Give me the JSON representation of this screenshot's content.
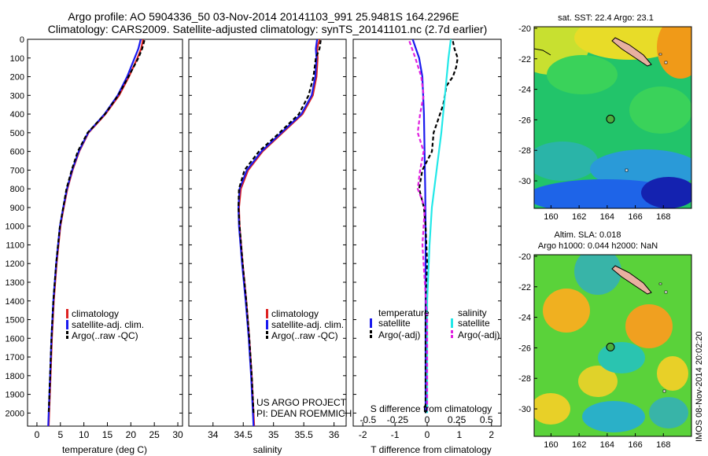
{
  "title_line1": "Argo profile: AO 5904336_50 03-Nov-2014 20141103_991 25.9481S 164.2296E",
  "title_line2": "Climatology: CARS2009. Satellite-adjusted climatology: synTS_20141101.nc (2.7d earlier)",
  "credit_line1": "US ARGO PROJECT",
  "credit_line2": "PI: DEAN ROEMMICH",
  "footer_stamp": "IMOS 08-Nov-2014 20:02:20",
  "colors": {
    "climatology": "#dd2222",
    "satellite": "#1a1aee",
    "argo": "#000000",
    "salinity_satellite": "#22e8e8",
    "salinity_argo": "#e020e0"
  },
  "chart_data": [
    {
      "type": "line",
      "xlabel": "temperature (deg C)",
      "xlim": [
        -2,
        31
      ],
      "ylim": [
        2070,
        0
      ],
      "xticks": [
        "0",
        "5",
        "10",
        "15",
        "20",
        "25",
        "30"
      ],
      "yticks": [
        "0",
        "100",
        "200",
        "300",
        "400",
        "500",
        "600",
        "700",
        "800",
        "900",
        "1000",
        "1100",
        "1200",
        "1300",
        "1400",
        "1500",
        "1600",
        "1700",
        "1800",
        "1900",
        "2000"
      ],
      "legend": [
        "climatology",
        "satellite-adj. clim.",
        "Argo(..raw -QC)"
      ],
      "series": [
        {
          "name": "climatology",
          "depth": [
            0,
            50,
            100,
            200,
            300,
            400,
            500,
            600,
            700,
            800,
            900,
            1000,
            1200,
            1400,
            1600,
            1800,
            2000,
            2070
          ],
          "values": [
            22.6,
            22.2,
            21.4,
            19.6,
            17.5,
            14.6,
            11.0,
            9.0,
            7.6,
            6.5,
            5.7,
            5.0,
            4.2,
            3.6,
            3.2,
            2.9,
            2.6,
            2.5
          ]
        },
        {
          "name": "satellite-adj. clim.",
          "depth": [
            0,
            50,
            100,
            200,
            300,
            400,
            500,
            600,
            700,
            800,
            900,
            1000,
            1200,
            1400,
            1600,
            1800,
            2000,
            2070
          ],
          "values": [
            22.1,
            21.6,
            20.8,
            19.2,
            17.2,
            14.4,
            10.9,
            8.9,
            7.5,
            6.4,
            5.6,
            4.9,
            4.1,
            3.5,
            3.1,
            2.8,
            2.5,
            2.4
          ]
        },
        {
          "name": "Argo(..raw -QC)",
          "depth": [
            5,
            50,
            100,
            200,
            300,
            400,
            500,
            600,
            700,
            800,
            900,
            1000,
            1200,
            1400,
            1600,
            1800,
            2000
          ],
          "values": [
            22.9,
            22.4,
            21.6,
            19.5,
            17.3,
            14.5,
            10.8,
            8.7,
            7.4,
            6.3,
            5.6,
            4.9,
            4.1,
            3.5,
            3.1,
            2.8,
            2.5
          ]
        }
      ]
    },
    {
      "type": "line",
      "xlabel": "salinity",
      "xlim": [
        33.6,
        36.2
      ],
      "ylim": [
        2070,
        0
      ],
      "xticks": [
        "34",
        "34.5",
        "35",
        "35.5",
        "36"
      ],
      "legend": [
        "climatology",
        "satellite-adj. clim.",
        "Argo(..raw -QC)"
      ],
      "series": [
        {
          "name": "climatology",
          "depth": [
            0,
            50,
            100,
            200,
            300,
            400,
            500,
            600,
            700,
            800,
            900,
            1000,
            1200,
            1400,
            1600,
            1800,
            2000,
            2070
          ],
          "values": [
            35.76,
            35.72,
            35.73,
            35.71,
            35.65,
            35.48,
            35.15,
            34.82,
            34.58,
            34.46,
            34.43,
            34.44,
            34.49,
            34.55,
            34.6,
            34.64,
            34.67,
            34.68
          ]
        },
        {
          "name": "satellite-adj. clim.",
          "depth": [
            0,
            50,
            100,
            200,
            300,
            400,
            500,
            600,
            700,
            800,
            900,
            1000,
            1200,
            1400,
            1600,
            1800,
            2000,
            2070
          ],
          "values": [
            35.72,
            35.7,
            35.71,
            35.69,
            35.63,
            35.46,
            35.13,
            34.8,
            34.56,
            34.44,
            34.42,
            34.43,
            34.48,
            34.54,
            34.59,
            34.63,
            34.66,
            34.67
          ]
        },
        {
          "name": "Argo(..raw -QC)",
          "depth": [
            5,
            50,
            100,
            200,
            300,
            400,
            500,
            600,
            700,
            800,
            900,
            1000,
            1200,
            1400,
            1600,
            1800,
            2000
          ],
          "values": [
            35.78,
            35.76,
            35.7,
            35.66,
            35.58,
            35.42,
            35.1,
            34.76,
            34.52,
            34.43,
            34.42,
            34.44,
            34.49,
            34.55,
            34.6,
            34.64,
            34.67
          ]
        }
      ]
    },
    {
      "type": "line",
      "xlabel": "T difference from climatology",
      "x2label": "S difference from climatology",
      "xlim": [
        -2.3,
        2.3
      ],
      "ylim": [
        2070,
        0
      ],
      "xticks": [
        "-2",
        "-1",
        "0",
        "1",
        "2"
      ],
      "x2ticks": [
        "-0.5",
        "-0.25",
        "0",
        "0.25",
        "0.5"
      ],
      "legend_temperature_title": "temperature",
      "legend_salinity_title": "salinity",
      "legend": [
        "satellite",
        "Argo(-adj)",
        "satellite",
        "Argo(-adj)"
      ],
      "series": [
        {
          "name": "temperature satellite",
          "depth": [
            0,
            50,
            100,
            200,
            400,
            600,
            800,
            1000,
            1500,
            2000
          ],
          "values": [
            -0.45,
            -0.35,
            -0.25,
            -0.15,
            -0.1,
            -0.08,
            -0.06,
            -0.05,
            -0.05,
            -0.05
          ]
        },
        {
          "name": "temperature Argo(-adj)",
          "depth": [
            10,
            50,
            100,
            150,
            200,
            250,
            300,
            350,
            400,
            450,
            500,
            600,
            700,
            800,
            900,
            1000,
            1200,
            1500,
            1800,
            2000
          ],
          "values": [
            0.8,
            0.85,
            0.95,
            0.9,
            0.8,
            0.6,
            0.55,
            0.5,
            0.4,
            0.3,
            0.2,
            0.15,
            -0.15,
            -0.25,
            -0.1,
            -0.05,
            0.0,
            -0.05,
            -0.05,
            -0.05
          ]
        },
        {
          "name": "salinity satellite",
          "depth": [
            0,
            100,
            300,
            500,
            700,
            900,
            1100,
            1400,
            1700,
            2000
          ],
          "values": [
            0.2,
            0.18,
            0.15,
            0.12,
            0.08,
            0.04,
            0.02,
            0.0,
            0.0,
            0.0
          ]
        },
        {
          "name": "salinity Argo(-adj)",
          "depth": [
            10,
            100,
            200,
            300,
            400,
            500,
            600,
            700,
            800,
            900,
            1100,
            1500,
            2000
          ],
          "values": [
            -0.15,
            -0.1,
            -0.05,
            -0.03,
            -0.06,
            -0.08,
            -0.03,
            -0.06,
            -0.08,
            -0.02,
            -0.04,
            0.0,
            0.0
          ]
        }
      ]
    },
    {
      "type": "heatmap",
      "title": "sat. SST: 22.4 Argo: 23.1",
      "xticks": [
        "160",
        "162",
        "164",
        "166",
        "168"
      ],
      "yticks": [
        "-20",
        "-22",
        "-24",
        "-26",
        "-28",
        "-30"
      ],
      "xlim": [
        158.8,
        170.0
      ],
      "ylim": [
        -31.8,
        -19.9
      ],
      "profile_location": [
        164.2296,
        -25.9481
      ]
    },
    {
      "type": "heatmap",
      "title_line1": "Altim. SLA: 0.018",
      "title_line2": "Argo h1000: 0.044 h2000: NaN",
      "xticks": [
        "160",
        "162",
        "164",
        "166",
        "168"
      ],
      "yticks": [
        "-20",
        "-22",
        "-24",
        "-26",
        "-28",
        "-30"
      ],
      "xlim": [
        158.8,
        170.0
      ],
      "ylim": [
        -31.8,
        -19.9
      ],
      "profile_location": [
        164.2296,
        -25.9481
      ]
    }
  ]
}
